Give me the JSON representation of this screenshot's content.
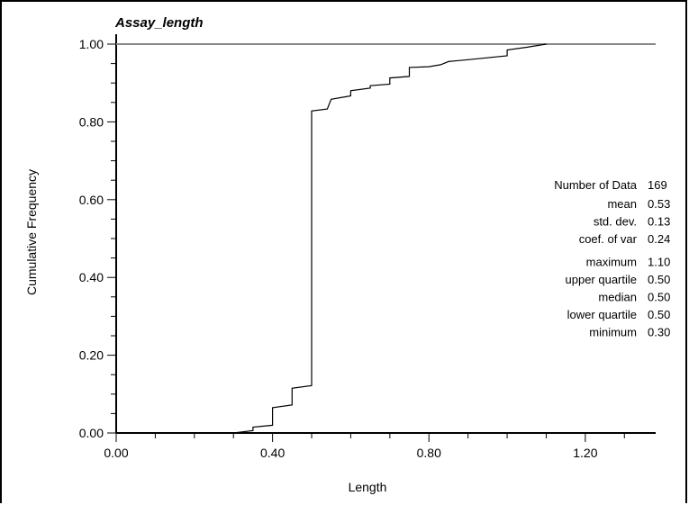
{
  "chart_data": {
    "type": "line",
    "title": "Assay_length",
    "xlabel": "Length",
    "ylabel": "Cumulative Frequency",
    "xlim": [
      0,
      1.38
    ],
    "ylim": [
      0,
      1.0
    ],
    "x_ticks": [
      "0.00",
      "0.40",
      "0.80",
      "1.20"
    ],
    "x_tick_values": [
      0,
      0.4,
      0.8,
      1.2
    ],
    "y_ticks": [
      "0.00",
      "0.20",
      "0.40",
      "0.60",
      "0.80",
      "1.00"
    ],
    "y_tick_values": [
      0,
      0.2,
      0.4,
      0.6,
      0.8,
      1.0
    ],
    "reference_line_y": 1.0,
    "series": [
      {
        "step_points": [
          [
            0.3,
            0.0
          ],
          [
            0.35,
            0.006
          ],
          [
            0.35,
            0.015
          ],
          [
            0.4,
            0.02
          ],
          [
            0.4,
            0.065
          ],
          [
            0.45,
            0.072
          ],
          [
            0.45,
            0.115
          ],
          [
            0.5,
            0.122
          ],
          [
            0.5,
            0.828
          ],
          [
            0.54,
            0.833
          ],
          [
            0.55,
            0.858
          ],
          [
            0.6,
            0.867
          ],
          [
            0.6,
            0.88
          ],
          [
            0.65,
            0.887
          ],
          [
            0.65,
            0.893
          ],
          [
            0.7,
            0.897
          ],
          [
            0.7,
            0.913
          ],
          [
            0.75,
            0.917
          ],
          [
            0.75,
            0.94
          ],
          [
            0.8,
            0.942
          ],
          [
            0.83,
            0.947
          ],
          [
            0.85,
            0.955
          ],
          [
            0.9,
            0.96
          ],
          [
            1.0,
            0.97
          ],
          [
            1.0,
            0.985
          ],
          [
            1.05,
            0.992
          ],
          [
            1.1,
            1.0
          ]
        ]
      }
    ],
    "stats": [
      {
        "label": "Number of Data",
        "value": "169"
      },
      {
        "label": "mean",
        "value": "0.53"
      },
      {
        "label": "std. dev.",
        "value": "0.13"
      },
      {
        "label": "coef. of var",
        "value": "0.24"
      },
      {
        "label": "maximum",
        "value": "1.10"
      },
      {
        "label": "upper quartile",
        "value": "0.50"
      },
      {
        "label": "median",
        "value": "0.50"
      },
      {
        "label": "lower quartile",
        "value": "0.50"
      },
      {
        "label": "minimum",
        "value": "0.30"
      }
    ]
  }
}
